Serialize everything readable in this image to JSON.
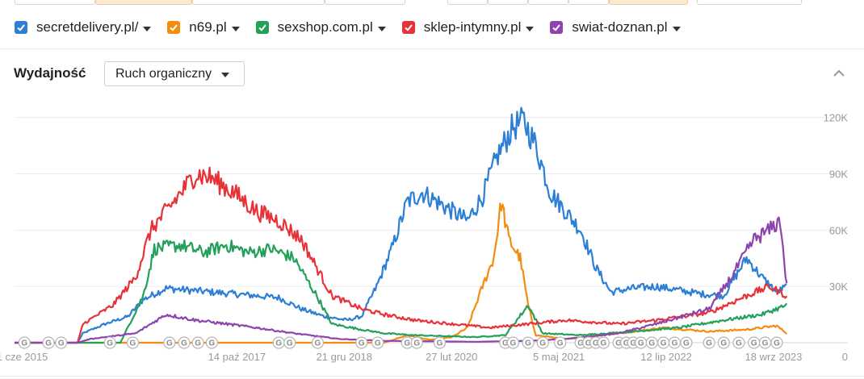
{
  "toolbar": {
    "segments": [
      {
        "active": false
      },
      {
        "active": true
      },
      {
        "active": false
      },
      {
        "active": false
      },
      {
        "active": false
      },
      {
        "active": false
      },
      {
        "active": false
      },
      {
        "active": true
      },
      {
        "active": false
      }
    ]
  },
  "legend": [
    {
      "label": "secretdelivery.pl/",
      "color": "#2d7fd5"
    },
    {
      "label": "n69.pl",
      "color": "#f48c0d"
    },
    {
      "label": "sexshop.com.pl",
      "color": "#23a05a"
    },
    {
      "label": "sklep-intymny.pl",
      "color": "#e8323a"
    },
    {
      "label": "swiat-doznan.pl",
      "color": "#8e44ad"
    }
  ],
  "section": {
    "title": "Wydajność",
    "metric_dropdown": "Ruch organiczny"
  },
  "chart_data": {
    "type": "line",
    "x_range": [
      "2015-05-01",
      "2023-12-15"
    ],
    "ylim": [
      0,
      125000
    ],
    "y_ticks": [
      {
        "value": 0,
        "label": "0"
      },
      {
        "value": 30000,
        "label": "30K"
      },
      {
        "value": 60000,
        "label": "60K"
      },
      {
        "value": 90000,
        "label": "90K"
      },
      {
        "value": 120000,
        "label": "120K"
      }
    ],
    "x_ticks": [
      {
        "date": "2015-06-01",
        "label": "1 cze 2015"
      },
      {
        "date": "2017-10-14",
        "label": "14 paź 2017"
      },
      {
        "date": "2018-12-21",
        "label": "21 gru 2018"
      },
      {
        "date": "2020-02-27",
        "label": "27 lut 2020"
      },
      {
        "date": "2021-05-05",
        "label": "5 maj 2021"
      },
      {
        "date": "2022-07-12",
        "label": "12 lip 2022"
      },
      {
        "date": "2023-09-18",
        "label": "18 wrz 2023"
      }
    ],
    "grid": true,
    "series": [
      {
        "name": "secretdelivery.pl/",
        "color": "#2d7fd5",
        "points": [
          [
            "2015-05-01",
            0
          ],
          [
            "2016-01-10",
            0
          ],
          [
            "2016-02-01",
            5000
          ],
          [
            "2016-05-01",
            10000
          ],
          [
            "2016-08-01",
            14000
          ],
          [
            "2016-10-01",
            23000
          ],
          [
            "2017-01-01",
            29000
          ],
          [
            "2017-04-01",
            28000
          ],
          [
            "2017-07-01",
            27000
          ],
          [
            "2017-10-01",
            26000
          ],
          [
            "2018-01-01",
            25000
          ],
          [
            "2018-04-01",
            24000
          ],
          [
            "2018-07-01",
            18000
          ],
          [
            "2018-10-01",
            14000
          ],
          [
            "2019-01-01",
            12000
          ],
          [
            "2019-03-01",
            14000
          ],
          [
            "2019-05-01",
            30000
          ],
          [
            "2019-07-01",
            50000
          ],
          [
            "2019-09-01",
            75000
          ],
          [
            "2019-11-01",
            80000
          ],
          [
            "2020-01-01",
            75000
          ],
          [
            "2020-03-01",
            70000
          ],
          [
            "2020-05-01",
            65000
          ],
          [
            "2020-07-01",
            78000
          ],
          [
            "2020-09-01",
            100000
          ],
          [
            "2020-11-01",
            115000
          ],
          [
            "2020-12-15",
            118000
          ],
          [
            "2021-02-01",
            105000
          ],
          [
            "2021-04-01",
            80000
          ],
          [
            "2021-06-01",
            70000
          ],
          [
            "2021-08-01",
            60000
          ],
          [
            "2021-10-01",
            40000
          ],
          [
            "2021-12-01",
            27000
          ],
          [
            "2022-03-01",
            29000
          ],
          [
            "2022-06-01",
            30000
          ],
          [
            "2022-09-01",
            28000
          ],
          [
            "2022-12-01",
            26000
          ],
          [
            "2023-03-01",
            25000
          ],
          [
            "2023-06-01",
            45000
          ],
          [
            "2023-08-01",
            35000
          ],
          [
            "2023-10-01",
            27000
          ],
          [
            "2023-11-10",
            30000
          ]
        ]
      },
      {
        "name": "n69.pl",
        "color": "#f48c0d",
        "points": [
          [
            "2015-05-01",
            0
          ],
          [
            "2019-06-01",
            0
          ],
          [
            "2019-09-01",
            4000
          ],
          [
            "2019-12-01",
            1500
          ],
          [
            "2020-03-01",
            3000
          ],
          [
            "2020-05-01",
            8000
          ],
          [
            "2020-07-01",
            30000
          ],
          [
            "2020-08-15",
            45000
          ],
          [
            "2020-09-15",
            75000
          ],
          [
            "2020-10-15",
            55000
          ],
          [
            "2020-11-30",
            45000
          ],
          [
            "2021-01-01",
            20000
          ],
          [
            "2021-02-01",
            4000
          ],
          [
            "2021-06-01",
            2000
          ],
          [
            "2022-01-01",
            5000
          ],
          [
            "2022-07-01",
            8000
          ],
          [
            "2023-01-01",
            6000
          ],
          [
            "2023-06-01",
            7000
          ],
          [
            "2023-10-01",
            9000
          ],
          [
            "2023-11-10",
            5000
          ]
        ]
      },
      {
        "name": "sexshop.com.pl",
        "color": "#23a05a",
        "points": [
          [
            "2015-05-01",
            0
          ],
          [
            "2016-01-10",
            0
          ],
          [
            "2016-07-01",
            0
          ],
          [
            "2016-10-01",
            25000
          ],
          [
            "2016-11-15",
            50000
          ],
          [
            "2017-03-01",
            52000
          ],
          [
            "2017-06-01",
            48000
          ],
          [
            "2017-09-01",
            52000
          ],
          [
            "2017-12-01",
            48000
          ],
          [
            "2018-03-01",
            50000
          ],
          [
            "2018-06-01",
            45000
          ],
          [
            "2018-09-01",
            25000
          ],
          [
            "2018-11-01",
            10000
          ],
          [
            "2019-03-01",
            7000
          ],
          [
            "2019-06-01",
            5000
          ],
          [
            "2019-10-01",
            4000
          ],
          [
            "2020-06-01",
            3000
          ],
          [
            "2020-10-01",
            4000
          ],
          [
            "2021-01-01",
            20000
          ],
          [
            "2021-03-01",
            5000
          ],
          [
            "2021-08-01",
            4000
          ],
          [
            "2022-03-01",
            6000
          ],
          [
            "2022-09-01",
            8000
          ],
          [
            "2023-03-01",
            12000
          ],
          [
            "2023-08-01",
            15000
          ],
          [
            "2023-11-10",
            20000
          ]
        ]
      },
      {
        "name": "sklep-intymny.pl",
        "color": "#e8323a",
        "points": [
          [
            "2015-05-01",
            0
          ],
          [
            "2016-01-10",
            0
          ],
          [
            "2016-02-01",
            10000
          ],
          [
            "2016-06-01",
            20000
          ],
          [
            "2016-09-01",
            35000
          ],
          [
            "2016-11-01",
            60000
          ],
          [
            "2017-02-01",
            75000
          ],
          [
            "2017-05-01",
            90000
          ],
          [
            "2017-07-01",
            88000
          ],
          [
            "2017-10-01",
            80000
          ],
          [
            "2018-01-01",
            70000
          ],
          [
            "2018-04-01",
            65000
          ],
          [
            "2018-07-01",
            55000
          ],
          [
            "2018-09-01",
            40000
          ],
          [
            "2018-11-01",
            25000
          ],
          [
            "2019-03-01",
            18000
          ],
          [
            "2019-06-01",
            15000
          ],
          [
            "2019-10-01",
            12000
          ],
          [
            "2020-03-01",
            10000
          ],
          [
            "2020-08-01",
            8000
          ],
          [
            "2021-01-01",
            10000
          ],
          [
            "2021-06-01",
            12000
          ],
          [
            "2022-01-01",
            10000
          ],
          [
            "2022-06-01",
            12000
          ],
          [
            "2023-01-01",
            16000
          ],
          [
            "2023-06-01",
            25000
          ],
          [
            "2023-09-01",
            30000
          ],
          [
            "2023-11-10",
            25000
          ]
        ]
      },
      {
        "name": "swiat-doznan.pl",
        "color": "#8e44ad",
        "points": [
          [
            "2015-05-01",
            0
          ],
          [
            "2016-01-10",
            0
          ],
          [
            "2016-03-01",
            2000
          ],
          [
            "2016-09-01",
            5000
          ],
          [
            "2017-01-01",
            15000
          ],
          [
            "2017-05-01",
            12000
          ],
          [
            "2017-09-01",
            10000
          ],
          [
            "2018-01-01",
            8000
          ],
          [
            "2018-06-01",
            5000
          ],
          [
            "2018-12-01",
            2000
          ],
          [
            "2019-06-01",
            1000
          ],
          [
            "2020-06-01",
            500
          ],
          [
            "2021-01-01",
            1000
          ],
          [
            "2021-06-01",
            2000
          ],
          [
            "2022-01-01",
            5000
          ],
          [
            "2022-06-01",
            10000
          ],
          [
            "2023-01-01",
            18000
          ],
          [
            "2023-04-01",
            35000
          ],
          [
            "2023-07-01",
            55000
          ],
          [
            "2023-09-01",
            60000
          ],
          [
            "2023-10-15",
            65000
          ],
          [
            "2023-11-10",
            30000
          ]
        ]
      }
    ],
    "annotation_markers": {
      "icon": "google-update-icon",
      "dates": [
        "2015-06-10",
        "2015-09-15",
        "2015-11-05",
        "2016-05-20",
        "2016-08-20",
        "2017-01-15",
        "2017-03-15",
        "2017-05-10",
        "2017-07-05",
        "2018-04-01",
        "2018-05-15",
        "2018-09-05",
        "2019-03-01",
        "2019-05-05",
        "2019-09-01",
        "2019-10-10",
        "2020-01-10",
        "2020-10-01",
        "2020-11-01",
        "2021-01-01",
        "2021-03-01",
        "2021-05-10",
        "2021-08-01",
        "2021-09-01",
        "2021-10-01",
        "2021-11-01",
        "2022-01-01",
        "2022-02-01",
        "2022-03-01",
        "2022-04-01",
        "2022-05-15",
        "2022-07-01",
        "2022-08-15",
        "2022-10-01",
        "2023-01-01",
        "2023-03-01",
        "2023-05-01",
        "2023-07-01",
        "2023-08-15",
        "2023-10-01"
      ]
    }
  }
}
